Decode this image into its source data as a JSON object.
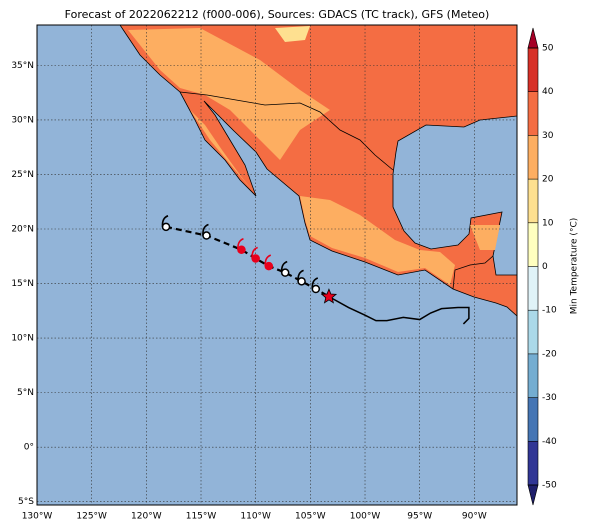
{
  "map": {
    "title": "Forecast of 2022062212 (f000-006), Sources: GDACS (TC track), GFS (Meteo)",
    "xlim": [
      -130,
      -86.1
    ],
    "ylim": [
      -5.3,
      38.7
    ],
    "xticks": [
      {
        "value": -130,
        "label": "130°W"
      },
      {
        "value": -125,
        "label": "125°W"
      },
      {
        "value": -120,
        "label": "120°W"
      },
      {
        "value": -115,
        "label": "115°W"
      },
      {
        "value": -110,
        "label": "110°W"
      },
      {
        "value": -105,
        "label": "105°W"
      },
      {
        "value": -100,
        "label": "100°W"
      },
      {
        "value": -95,
        "label": "95°W"
      },
      {
        "value": -90,
        "label": "90°W"
      }
    ],
    "yticks": [
      {
        "value": -5,
        "label": "5°S"
      },
      {
        "value": 0,
        "label": "0°"
      },
      {
        "value": 5,
        "label": "5°N"
      },
      {
        "value": 10,
        "label": "10°N"
      },
      {
        "value": 15,
        "label": "15°N"
      },
      {
        "value": 20,
        "label": "20°N"
      },
      {
        "value": 25,
        "label": "25°N"
      },
      {
        "value": 30,
        "label": "30°N"
      },
      {
        "value": 35,
        "label": "35°N"
      }
    ],
    "grid": true,
    "track": {
      "points": [
        {
          "lon": -118.2,
          "lat": 20.2,
          "color": "#000000"
        },
        {
          "lon": -114.5,
          "lat": 19.4,
          "color": "#000000"
        },
        {
          "lon": -111.3,
          "lat": 18.1,
          "color": "#e8001c"
        },
        {
          "lon": -110.0,
          "lat": 17.3,
          "color": "#e8001c"
        },
        {
          "lon": -108.8,
          "lat": 16.6,
          "color": "#e8001c"
        },
        {
          "lon": -107.3,
          "lat": 16.0,
          "color": "#000000"
        },
        {
          "lon": -105.8,
          "lat": 15.2,
          "color": "#000000"
        },
        {
          "lon": -104.5,
          "lat": 14.5,
          "color": "#000000"
        }
      ],
      "current": {
        "lon": -103.3,
        "lat": 13.8,
        "color": "#e8001c"
      },
      "past_path": {
        "lon": [
          -103.3,
          -101.5,
          -100,
          -99,
          -98,
          -96.5,
          -95,
          -94,
          -93,
          -91.5,
          -90.5,
          -90.5,
          -91
        ],
        "lat": [
          13.8,
          12.8,
          12.1,
          11.6,
          11.6,
          11.9,
          11.7,
          12.3,
          12.7,
          12.8,
          12.8,
          11.8,
          11.3
        ]
      }
    },
    "colorbar": {
      "label": "Min Temperature (°C)",
      "levels": [
        -50,
        -40,
        -30,
        -20,
        -10,
        0,
        10,
        20,
        30,
        40,
        50
      ],
      "colors": [
        "#313695",
        "#4575b4",
        "#74add1",
        "#abd9e9",
        "#e0f3f8",
        "#ffffbf",
        "#fee090",
        "#fdae61",
        "#f46d43",
        "#d73027"
      ],
      "under": "#1f1f6b",
      "over": "#a50026",
      "ticks": [
        -50,
        -40,
        -30,
        -20,
        -10,
        0,
        10,
        20,
        30,
        40,
        50
      ]
    }
  }
}
